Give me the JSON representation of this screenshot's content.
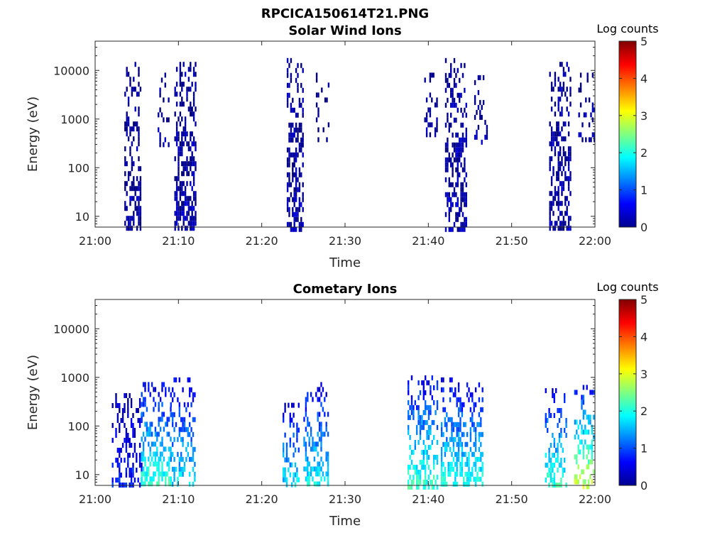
{
  "figure": {
    "suptitle": "RPCICA150614T21.PNG"
  },
  "chart_data": [
    {
      "type": "heatmap",
      "title": "Solar Wind Ions",
      "xlabel": "Time",
      "ylabel": "Energy (eV)",
      "x_range": [
        "21:00",
        "22:00"
      ],
      "x_ticks": [
        "21:00",
        "21:10",
        "21:20",
        "21:30",
        "21:40",
        "21:50",
        "22:00"
      ],
      "y_scale": "log",
      "y_range": [
        6,
        40000
      ],
      "y_ticks": [
        "10",
        "100",
        "1000",
        "10000"
      ],
      "colorbar": {
        "title": "Log counts",
        "range": [
          0,
          5
        ],
        "ticks": [
          "0",
          "1",
          "2",
          "3",
          "4",
          "5"
        ],
        "colormap": "jet"
      },
      "bursts": [
        {
          "start": "21:03.5",
          "end": "21:05.5",
          "emin": 6,
          "emax": 15000,
          "level": 0.1,
          "density": 0.55
        },
        {
          "start": "21:07.5",
          "end": "21:08.8",
          "emin": 300,
          "emax": 9000,
          "level": 0.1,
          "density": 0.3
        },
        {
          "start": "21:09.5",
          "end": "21:12.0",
          "emin": 6,
          "emax": 15000,
          "level": 0.15,
          "density": 0.65
        },
        {
          "start": "21:23.0",
          "end": "21:25.0",
          "emin": 6,
          "emax": 18000,
          "level": 0.15,
          "density": 0.6
        },
        {
          "start": "21:26.5",
          "end": "21:28.0",
          "emin": 400,
          "emax": 9000,
          "level": 0.1,
          "density": 0.3
        },
        {
          "start": "21:39.5",
          "end": "21:41.0",
          "emin": 500,
          "emax": 9000,
          "level": 0.1,
          "density": 0.3
        },
        {
          "start": "21:42.0",
          "end": "21:44.5",
          "emin": 6,
          "emax": 18000,
          "level": 0.15,
          "density": 0.65
        },
        {
          "start": "21:45.5",
          "end": "21:47.0",
          "emin": 300,
          "emax": 8000,
          "level": 0.1,
          "density": 0.3
        },
        {
          "start": "21:54.5",
          "end": "21:57.0",
          "emin": 6,
          "emax": 15000,
          "level": 0.15,
          "density": 0.6
        },
        {
          "start": "21:58.0",
          "end": "21:59.9",
          "emin": 400,
          "emax": 9000,
          "level": 0.1,
          "density": 0.3
        }
      ]
    },
    {
      "type": "heatmap",
      "title": "Cometary Ions",
      "xlabel": "Time",
      "ylabel": "Energy (eV)",
      "x_range": [
        "21:00",
        "22:00"
      ],
      "x_ticks": [
        "21:00",
        "21:10",
        "21:20",
        "21:30",
        "21:40",
        "21:50",
        "22:00"
      ],
      "y_scale": "log",
      "y_range": [
        6,
        40000
      ],
      "y_ticks": [
        "10",
        "100",
        "1000",
        "10000"
      ],
      "colorbar": {
        "title": "Log counts",
        "range": [
          0,
          5
        ],
        "ticks": [
          "0",
          "1",
          "2",
          "3",
          "4",
          "5"
        ],
        "colormap": "jet"
      },
      "bursts": [
        {
          "start": "21:02.0",
          "end": "21:05.5",
          "emin": 6,
          "emax": 600,
          "level": 0.6,
          "density": 0.45
        },
        {
          "start": "21:05.5",
          "end": "21:09.0",
          "emin": 6,
          "emax": 800,
          "level": 1.8,
          "density": 0.55
        },
        {
          "start": "21:09.0",
          "end": "21:12.0",
          "emin": 6,
          "emax": 1000,
          "level": 1.5,
          "density": 0.5
        },
        {
          "start": "21:22.5",
          "end": "21:24.5",
          "emin": 6,
          "emax": 300,
          "level": 1.5,
          "density": 0.45
        },
        {
          "start": "21:25.0",
          "end": "21:28.0",
          "emin": 6,
          "emax": 800,
          "level": 1.6,
          "density": 0.5
        },
        {
          "start": "21:37.5",
          "end": "21:41.0",
          "emin": 6,
          "emax": 1100,
          "level": 1.8,
          "density": 0.55
        },
        {
          "start": "21:41.5",
          "end": "21:46.5",
          "emin": 6,
          "emax": 1000,
          "level": 1.7,
          "density": 0.55
        },
        {
          "start": "21:54.0",
          "end": "21:56.5",
          "emin": 6,
          "emax": 600,
          "level": 1.8,
          "density": 0.45
        },
        {
          "start": "21:57.5",
          "end": "21:59.9",
          "emin": 6,
          "emax": 700,
          "level": 2.4,
          "density": 0.5
        }
      ]
    }
  ]
}
